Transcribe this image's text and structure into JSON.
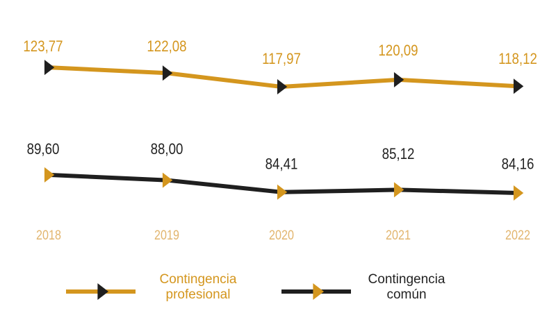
{
  "chart_data": {
    "type": "line",
    "categories": [
      "2018",
      "2019",
      "2020",
      "2021",
      "2022"
    ],
    "category_color": "#e2b56e",
    "series": [
      {
        "name": "Contingencia profesional",
        "color": "#d4961e",
        "marker_color": "#1f1f1f",
        "values": [
          123.77,
          122.08,
          117.97,
          120.09,
          118.12
        ],
        "value_labels": [
          "123,77",
          "122,08",
          "117,97",
          "120,09",
          "118,12"
        ]
      },
      {
        "name": "Contingencia común",
        "color": "#1f1f1f",
        "marker_color": "#d4961e",
        "values": [
          89.6,
          88.0,
          84.41,
          85.12,
          84.16
        ],
        "value_labels": [
          "89,60",
          "88,00",
          "84,41",
          "85,12",
          "84,16"
        ]
      }
    ]
  }
}
